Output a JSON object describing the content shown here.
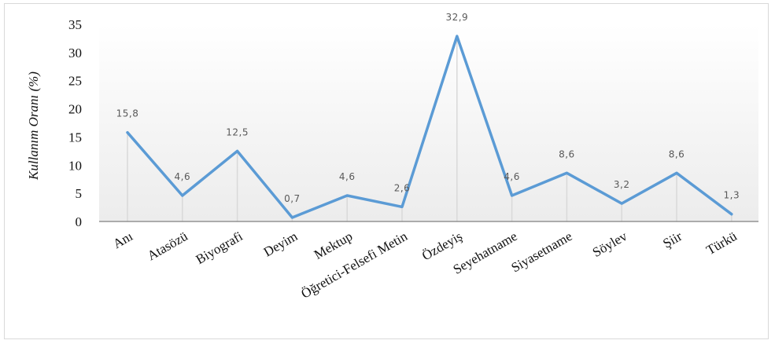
{
  "chart_data": {
    "type": "line",
    "title": "",
    "xlabel": "",
    "ylabel": "Kullanım Oranı (%)",
    "ylim": [
      0,
      35
    ],
    "yticks": [
      "0",
      "5",
      "10",
      "15",
      "20",
      "25",
      "30",
      "35"
    ],
    "categories": [
      "Anı",
      "Atasözü",
      "Biyografi",
      "Deyim",
      "Mektup",
      "Öğretici-Felsefi Metin",
      "Özdeyiş",
      "Seyehatname",
      "Siyasetname",
      "Söylev",
      "Şiir",
      "Türkü"
    ],
    "series": [
      {
        "values": [
          15.8,
          4.6,
          12.5,
          0.7,
          4.6,
          2.6,
          32.9,
          4.6,
          8.6,
          3.2,
          8.6,
          1.3
        ],
        "labels": [
          "15,8",
          "4,6",
          "12,5",
          "0,7",
          "4,6",
          "2,6",
          "32,9",
          "4,6",
          "8,6",
          "3,2",
          "8,6",
          "1,3"
        ]
      }
    ],
    "colors": {
      "line": "#5b9bd5",
      "drop_lines": "#d9d9d9",
      "axis": "#7f7f7f"
    },
    "grid": false,
    "legend": "none"
  }
}
